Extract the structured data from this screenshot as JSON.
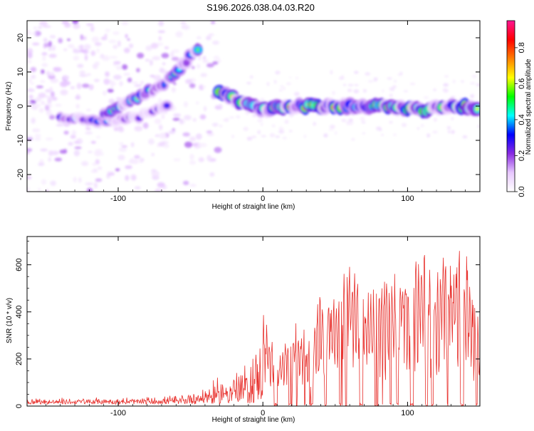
{
  "title": "S196.2026.038.04.03.R20",
  "chart_data": [
    {
      "type": "heatmap",
      "xlabel": "Height of straight line (km)",
      "ylabel": "Frequency (Hz)",
      "xlim": [
        -163,
        150
      ],
      "ylim": [
        -25,
        25
      ],
      "xticks": [
        -100,
        0,
        100
      ],
      "yticks": [
        -20,
        -10,
        0,
        10,
        20
      ],
      "colorbar": {
        "label": "Normalized spectral amplitude",
        "range": [
          0.0,
          0.95
        ],
        "ticks": [
          0.0,
          0.2,
          0.4,
          0.6,
          0.8
        ],
        "colors": [
          "#ffffff",
          "#e8c8ff",
          "#8a2be2",
          "#0000ff",
          "#00ffff",
          "#00ff00",
          "#ffff00",
          "#ff7f00",
          "#ff0000",
          "#ff1493"
        ]
      },
      "features": {
        "main_line": {
          "x": [
            -30,
            -15,
            0,
            20,
            50,
            80,
            110,
            140,
            150
          ],
          "y": [
            4,
            1,
            -1,
            0,
            0,
            0,
            -1,
            0,
            -1
          ],
          "peak_amplitude": 0.85
        },
        "rising_arc": {
          "x": [
            -110,
            -90,
            -70,
            -55,
            -45
          ],
          "y": [
            -2,
            2,
            6,
            12,
            17
          ],
          "peak_amplitude": 0.6
        },
        "lower_branch": {
          "x": [
            -140,
            -120,
            -100,
            -85,
            -65
          ],
          "y": [
            -3,
            -4,
            -4,
            -3,
            0
          ],
          "peak_amplitude": 0.4
        },
        "noise_region_x": [
          -163,
          -30
        ]
      }
    },
    {
      "type": "line",
      "xlabel": "Height of straight line (km)",
      "ylabel": "SNR (10 * v/v)",
      "xlim": [
        -163,
        150
      ],
      "ylim": [
        0,
        720
      ],
      "xticks": [
        -100,
        0,
        100
      ],
      "yticks": [
        0,
        200,
        400,
        600
      ],
      "series_color": "#e8302c",
      "envelope": {
        "x": [
          -163,
          -120,
          -80,
          -60,
          -40,
          -25,
          -10,
          0,
          10,
          20,
          30,
          40,
          50,
          60,
          70,
          80,
          90,
          100,
          110,
          120,
          130,
          140,
          150
        ],
        "y": [
          30,
          30,
          35,
          40,
          85,
          150,
          200,
          400,
          230,
          370,
          320,
          480,
          510,
          640,
          500,
          520,
          560,
          610,
          680,
          620,
          670,
          690,
          350
        ]
      }
    }
  ]
}
